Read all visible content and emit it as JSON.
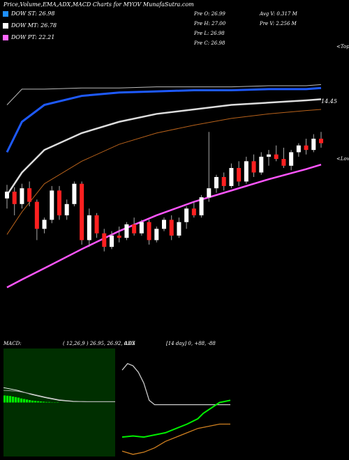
{
  "chart_data": [
    {
      "type": "candlestick",
      "title": "Price,Volume,EMA,ADX,MACD Charts for MYOV MunafaSutra.com",
      "legend": [
        {
          "name": "DOW ST: 26.98",
          "color": "#1e90ff"
        },
        {
          "name": "DOW MT: 26.78",
          "color": "#ffffff"
        },
        {
          "name": "DOW PT: 22.21",
          "color": "#ff66ff"
        }
      ],
      "info": [
        "Pre   O: 26.99",
        "Pre   H: 27.00",
        "Pre   L: 26.98",
        "Pre   C: 26.98",
        "Avg V: 0.317 M",
        "Pre   V: 2.256  M"
      ],
      "annotations": [
        "<Tops",
        "14.45",
        "<Lows"
      ],
      "ylim": [
        25.5,
        28.5
      ],
      "up_color": "#ffffff",
      "down_color": "#ff2020",
      "wick_color": "#aaaaaa",
      "open": [
        26.77,
        26.83,
        26.72,
        26.86,
        26.74,
        26.5,
        26.58,
        26.84,
        26.62,
        26.72,
        26.9,
        26.4,
        26.62,
        26.46,
        26.34,
        26.44,
        26.42,
        26.54,
        26.46,
        26.56,
        26.4,
        26.5,
        26.58,
        26.44,
        26.56,
        26.68,
        26.62,
        26.78,
        26.86,
        26.96,
        26.88,
        27.04,
        26.92,
        27.1,
        27.0,
        27.14,
        27.16,
        27.12,
        27.06,
        27.18,
        27.24,
        27.2,
        27.3
      ],
      "high": [
        26.89,
        26.87,
        26.9,
        26.92,
        26.76,
        26.6,
        26.88,
        26.88,
        26.76,
        26.92,
        26.92,
        26.68,
        26.64,
        26.5,
        26.48,
        26.52,
        26.56,
        26.6,
        26.58,
        26.58,
        26.52,
        26.6,
        26.62,
        26.6,
        26.7,
        26.74,
        26.8,
        27.36,
        26.98,
        27.0,
        27.08,
        27.1,
        27.14,
        27.16,
        27.18,
        27.2,
        27.24,
        27.22,
        27.2,
        27.26,
        27.3,
        27.34,
        27.36
      ],
      "low": [
        26.68,
        26.62,
        26.68,
        26.7,
        26.4,
        26.46,
        26.55,
        26.58,
        26.58,
        26.7,
        26.36,
        26.34,
        26.42,
        26.3,
        26.32,
        26.38,
        26.4,
        26.44,
        26.44,
        26.36,
        26.38,
        26.48,
        26.4,
        26.42,
        26.5,
        26.6,
        26.6,
        26.74,
        26.82,
        26.84,
        26.86,
        26.88,
        26.9,
        26.96,
        26.98,
        27.06,
        27.1,
        27.04,
        27.02,
        27.14,
        27.16,
        27.18,
        27.22
      ],
      "close": [
        26.83,
        26.72,
        26.86,
        26.74,
        26.5,
        26.58,
        26.84,
        26.62,
        26.72,
        26.9,
        26.4,
        26.62,
        26.46,
        26.34,
        26.44,
        26.42,
        26.54,
        26.46,
        26.56,
        26.4,
        26.5,
        26.58,
        26.44,
        26.56,
        26.68,
        26.62,
        26.78,
        26.86,
        26.96,
        26.88,
        27.04,
        26.92,
        27.1,
        27.0,
        27.14,
        27.16,
        27.12,
        27.06,
        27.18,
        27.24,
        27.2,
        27.3,
        27.26
      ],
      "series": [
        {
          "name": "EMA pink",
          "color": "#ff55ff",
          "width": 2.5,
          "x": [
            0,
            2,
            5,
            10,
            15,
            20,
            25,
            30,
            35,
            40,
            42
          ],
          "values": [
            25.98,
            26.05,
            26.15,
            26.32,
            26.48,
            26.62,
            26.74,
            26.84,
            26.94,
            27.03,
            27.07
          ]
        },
        {
          "name": "EMA brown",
          "color": "#b8621b",
          "width": 1,
          "x": [
            0,
            2,
            5,
            10,
            15,
            20,
            25,
            30,
            35,
            40,
            42
          ],
          "values": [
            26.45,
            26.65,
            26.9,
            27.1,
            27.25,
            27.35,
            27.42,
            27.48,
            27.52,
            27.55,
            27.56
          ]
        },
        {
          "name": "EMA white",
          "color": "#dddddd",
          "width": 2.5,
          "x": [
            0,
            2,
            5,
            10,
            15,
            20,
            25,
            30,
            35,
            40,
            42
          ],
          "values": [
            26.8,
            27.0,
            27.2,
            27.35,
            27.45,
            27.52,
            27.56,
            27.6,
            27.62,
            27.64,
            27.65
          ]
        },
        {
          "name": "EMA blue",
          "color": "#1e5aff",
          "width": 3,
          "x": [
            0,
            2,
            5,
            10,
            15,
            20,
            25,
            30,
            35,
            40,
            42
          ],
          "values": [
            27.18,
            27.45,
            27.6,
            27.68,
            27.71,
            27.72,
            27.73,
            27.73,
            27.74,
            27.74,
            27.75
          ]
        },
        {
          "name": "EMA gray",
          "color": "#bbbbbb",
          "width": 1,
          "x": [
            0,
            2,
            5,
            10,
            15,
            20,
            25,
            30,
            35,
            40,
            42
          ],
          "values": [
            27.6,
            27.74,
            27.74,
            27.75,
            27.75,
            27.76,
            27.76,
            27.76,
            27.77,
            27.77,
            27.78
          ]
        }
      ]
    },
    {
      "type": "macd",
      "title": "MACD:",
      "subtitle": "( 12,26,9 ) 26.95, 26.92, 0.03",
      "ylim": [
        -2,
        2
      ],
      "xlim": [
        0,
        40
      ],
      "background": "#002f00",
      "hist_color": "#00ee00",
      "hist_x": [
        0,
        1,
        2,
        3,
        4,
        5,
        6,
        7,
        8,
        9,
        10,
        11,
        12,
        13,
        14,
        15,
        16,
        17,
        18,
        19
      ],
      "hist": [
        0.26,
        0.25,
        0.24,
        0.22,
        0.2,
        0.18,
        0.15,
        0.13,
        0.11,
        0.09,
        0.07,
        0.06,
        0.05,
        0.04,
        0.03,
        0.02,
        0.02,
        0.01,
        0.01,
        0.01
      ],
      "series": [
        {
          "name": "MACD",
          "color": "#ffffff",
          "x": [
            0,
            5,
            10,
            15,
            20,
            25,
            30,
            35,
            40
          ],
          "values": [
            0.55,
            0.45,
            0.3,
            0.18,
            0.08,
            0.04,
            0.03,
            0.03,
            0.03
          ]
        },
        {
          "name": "Signal",
          "color": "#aaaaaa",
          "x": [
            0,
            5,
            10,
            15,
            20,
            25,
            30,
            35,
            40
          ],
          "values": [
            0.45,
            0.42,
            0.32,
            0.2,
            0.1,
            0.05,
            0.03,
            0.03,
            0.03
          ]
        }
      ]
    },
    {
      "type": "adx",
      "title": "ADX",
      "subtitle": "[14 day] 0, +88, -88",
      "ylim": [
        0,
        100
      ],
      "xlim": [
        0,
        20
      ],
      "series": [
        {
          "name": "ADX",
          "color": "#cccccc",
          "x": [
            0,
            1,
            2,
            3,
            4,
            5,
            6,
            8,
            12,
            16,
            20
          ],
          "values": [
            80,
            86,
            84,
            78,
            68,
            52,
            48,
            48,
            48,
            48,
            48
          ]
        },
        {
          "name": "+DI",
          "color": "#00ee00",
          "x": [
            0,
            2,
            4,
            6,
            8,
            10,
            12,
            14,
            15,
            18,
            20
          ],
          "values": [
            18,
            19,
            18,
            20,
            22,
            26,
            30,
            35,
            40,
            50,
            52
          ]
        },
        {
          "name": "-DI",
          "color": "#d08020",
          "x": [
            0,
            2,
            4,
            6,
            8,
            10,
            12,
            14,
            16,
            18,
            20
          ],
          "values": [
            5,
            2,
            4,
            8,
            14,
            18,
            22,
            26,
            28,
            30,
            30
          ]
        }
      ]
    }
  ]
}
